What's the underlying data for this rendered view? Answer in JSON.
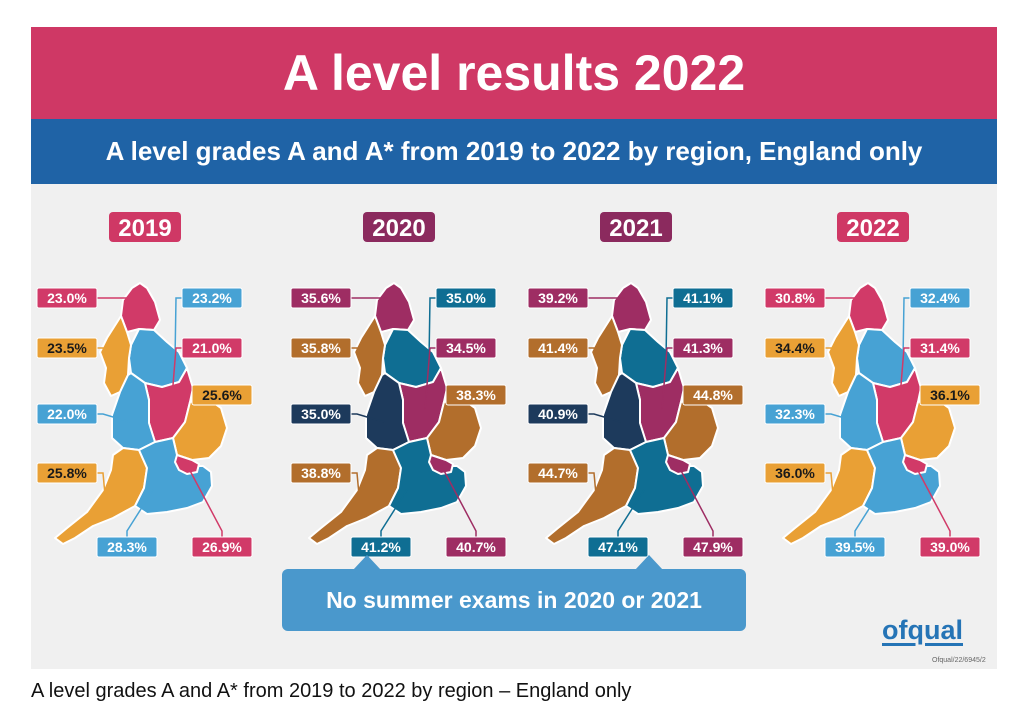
{
  "title": "A level results 2022",
  "subtitle": "A level grades A and A* from 2019 to 2022 by region, England only",
  "note": "No summer exams in 2020 or 2021",
  "logo_text": "ofqual",
  "reference": "Ofqual/22/6945/2",
  "caption": "A level grades A and A* from 2019 to 2022 by region – England only",
  "colors": {
    "title_bar": "#cf3865",
    "subtitle_bar": "#1f63a6",
    "panel": "#f0f0f0",
    "note_box": "#4a98cc",
    "logo": "#2574b6",
    "group_2019": "#cf3865",
    "group_2020": "#8b2a5e",
    "group_2021": "#8b2a5e",
    "group_2022": "#cf3865"
  },
  "region_order": [
    "North East",
    "Yorkshire and the Humber",
    "North West",
    "East Midlands",
    "West Midlands",
    "East of England",
    "South West",
    "South East",
    "London"
  ],
  "maps": [
    {
      "year": "2019",
      "values": {
        "North East": "23.0%",
        "Yorkshire and the Humber": "23.2%",
        "North West": "23.5%",
        "East Midlands": "21.0%",
        "West Midlands": "22.0%",
        "East of England": "25.6%",
        "South West": "25.8%",
        "South East": "28.3%",
        "London": "26.9%"
      },
      "fills": {
        "North East": "#d13a68",
        "Yorkshire and the Humber": "#47a2d4",
        "North West": "#e9a035",
        "East Midlands": "#d13a68",
        "West Midlands": "#47a2d4",
        "East of England": "#e9a035",
        "South West": "#e9a035",
        "South East": "#47a2d4",
        "London": "#d13a68"
      }
    },
    {
      "year": "2020",
      "values": {
        "North East": "35.6%",
        "Yorkshire and the Humber": "35.0%",
        "North West": "35.8%",
        "East Midlands": "34.5%",
        "West Midlands": "35.0%",
        "East of England": "38.3%",
        "South West": "38.8%",
        "South East": "41.2%",
        "London": "40.7%"
      },
      "fills": {
        "North East": "#9e2d63",
        "Yorkshire and the Humber": "#0f6e93",
        "North West": "#b26e2c",
        "East Midlands": "#9e2d63",
        "West Midlands": "#1d3a5c",
        "East of England": "#b26e2c",
        "South West": "#b26e2c",
        "South East": "#0f6e93",
        "London": "#9e2d63"
      }
    },
    {
      "year": "2021",
      "values": {
        "North East": "39.2%",
        "Yorkshire and the Humber": "41.1%",
        "North West": "41.4%",
        "East Midlands": "41.3%",
        "West Midlands": "40.9%",
        "East of England": "44.8%",
        "South West": "44.7%",
        "South East": "47.1%",
        "London": "47.9%"
      },
      "fills": {
        "North East": "#9e2d63",
        "Yorkshire and the Humber": "#0f6e93",
        "North West": "#b26e2c",
        "East Midlands": "#9e2d63",
        "West Midlands": "#1d3a5c",
        "East of England": "#b26e2c",
        "South West": "#b26e2c",
        "South East": "#0f6e93",
        "London": "#9e2d63"
      }
    },
    {
      "year": "2022",
      "values": {
        "North East": "30.8%",
        "Yorkshire and the Humber": "32.4%",
        "North West": "34.4%",
        "East Midlands": "31.4%",
        "West Midlands": "32.3%",
        "East of England": "36.1%",
        "South West": "36.0%",
        "South East": "39.5%",
        "London": "39.0%"
      },
      "fills": {
        "North East": "#d13a68",
        "Yorkshire and the Humber": "#47a2d4",
        "North West": "#e9a035",
        "East Midlands": "#d13a68",
        "West Midlands": "#47a2d4",
        "East of England": "#e9a035",
        "South West": "#e9a035",
        "South East": "#47a2d4",
        "London": "#d13a68"
      }
    }
  ]
}
